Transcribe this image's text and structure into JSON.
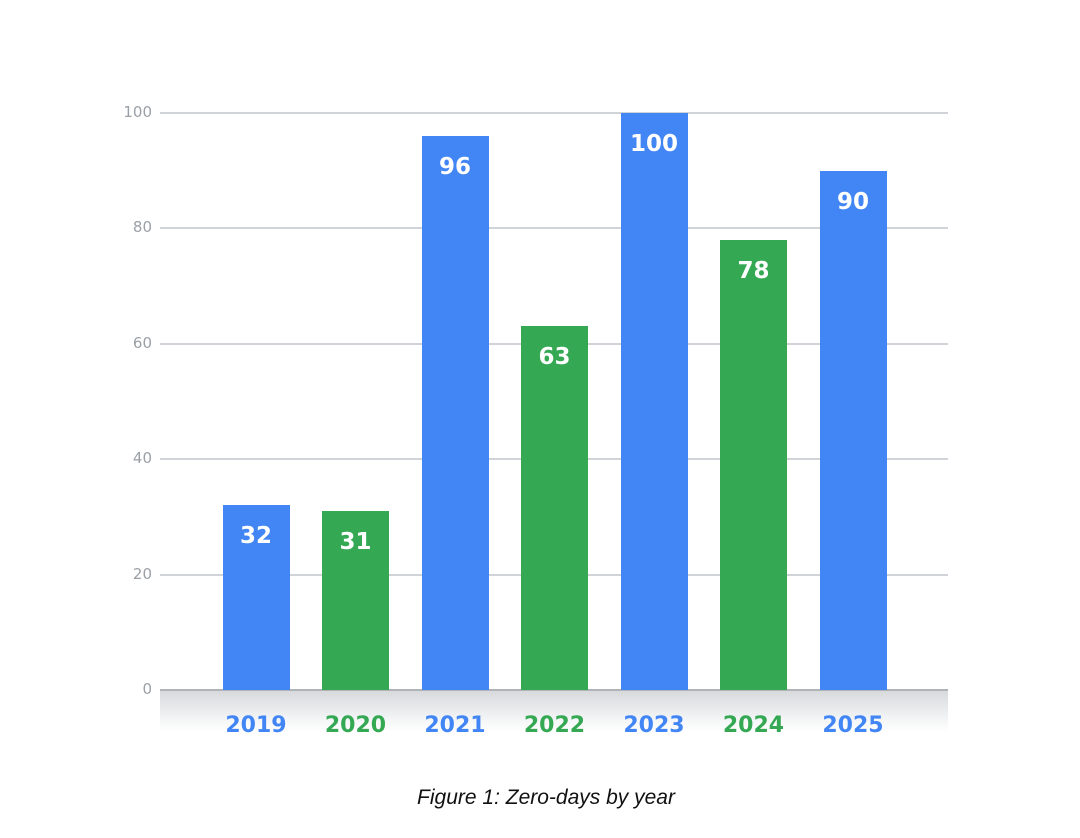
{
  "chart_data": {
    "type": "bar",
    "title": "",
    "caption": "Figure 1: Zero-days by year",
    "xlabel": "",
    "ylabel": "",
    "categories": [
      "2019",
      "2020",
      "2021",
      "2022",
      "2023",
      "2024",
      "2025"
    ],
    "values": [
      32,
      31,
      96,
      63,
      100,
      78,
      90
    ],
    "bar_colors": [
      "#4285f4",
      "#34a853",
      "#4285f4",
      "#34a853",
      "#4285f4",
      "#34a853",
      "#4285f4"
    ],
    "ylim": [
      0,
      100
    ],
    "yticks": [
      0,
      20,
      40,
      60,
      80,
      100
    ],
    "grid": true,
    "legend": "none",
    "data_labels": true
  },
  "colors": {
    "blue": "#4285f4",
    "green": "#34a853",
    "grid": "#d0d3d7",
    "tick_text": "#9aa0a6"
  }
}
